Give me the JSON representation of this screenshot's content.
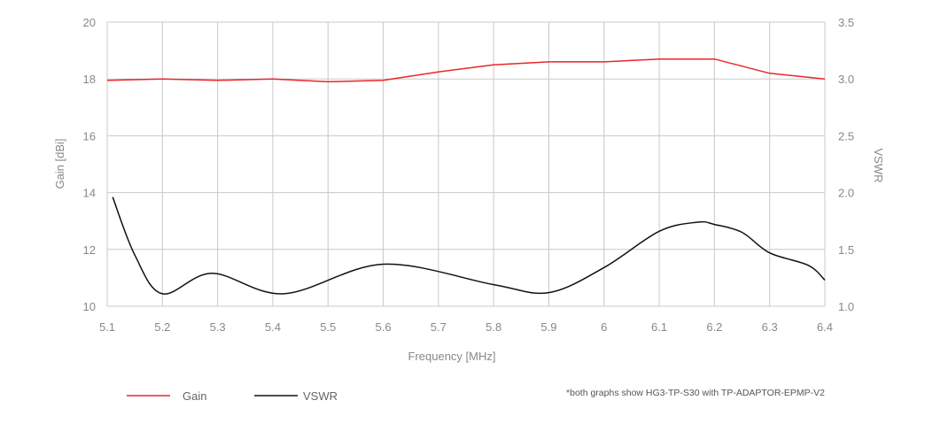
{
  "chart_data": {
    "type": "line",
    "xlabel": "Frequency [MHz]",
    "ylabel_left": "Gain [dBi]",
    "ylabel_right": "VSWR",
    "x_ticks": [
      "5.1",
      "5.2",
      "5.3",
      "5.4",
      "5.5",
      "5.6",
      "5.7",
      "5.8",
      "5.9",
      "6",
      "6.1",
      "6.2",
      "6.3",
      "6.4"
    ],
    "y_left_ticks": [
      "10",
      "12",
      "14",
      "16",
      "18",
      "20"
    ],
    "y_right_ticks": [
      "1.0",
      "1.5",
      "2.0",
      "2.5",
      "3.0",
      "3.5"
    ],
    "xlim": [
      5.1,
      6.4
    ],
    "ylim_left": [
      10,
      20
    ],
    "ylim_right": [
      1.0,
      3.5
    ],
    "grid": true,
    "legend_position": "bottom-left",
    "note": "*both graphs show HG3-TP-S30 with TP-ADAPTOR-EPMP-V2",
    "series": [
      {
        "name": "Gain",
        "axis": "left",
        "color": "#e8262b",
        "x": [
          5.1,
          5.2,
          5.3,
          5.4,
          5.5,
          5.6,
          5.7,
          5.8,
          5.9,
          6.0,
          6.1,
          6.2,
          6.3,
          6.4
        ],
        "y": [
          17.95,
          18.0,
          17.95,
          18.0,
          17.9,
          17.95,
          18.25,
          18.5,
          18.6,
          18.6,
          18.7,
          18.7,
          18.2,
          18.0
        ]
      },
      {
        "name": "VSWR",
        "axis": "right",
        "color": "#111111",
        "x": [
          5.11,
          5.15,
          5.2,
          5.29,
          5.42,
          5.6,
          5.8,
          5.9,
          6.0,
          6.1,
          6.17,
          6.2,
          6.25,
          6.3,
          6.37,
          6.4
        ],
        "y": [
          1.96,
          1.45,
          1.11,
          1.29,
          1.11,
          1.37,
          1.19,
          1.12,
          1.34,
          1.66,
          1.74,
          1.72,
          1.65,
          1.47,
          1.36,
          1.23
        ]
      }
    ]
  }
}
